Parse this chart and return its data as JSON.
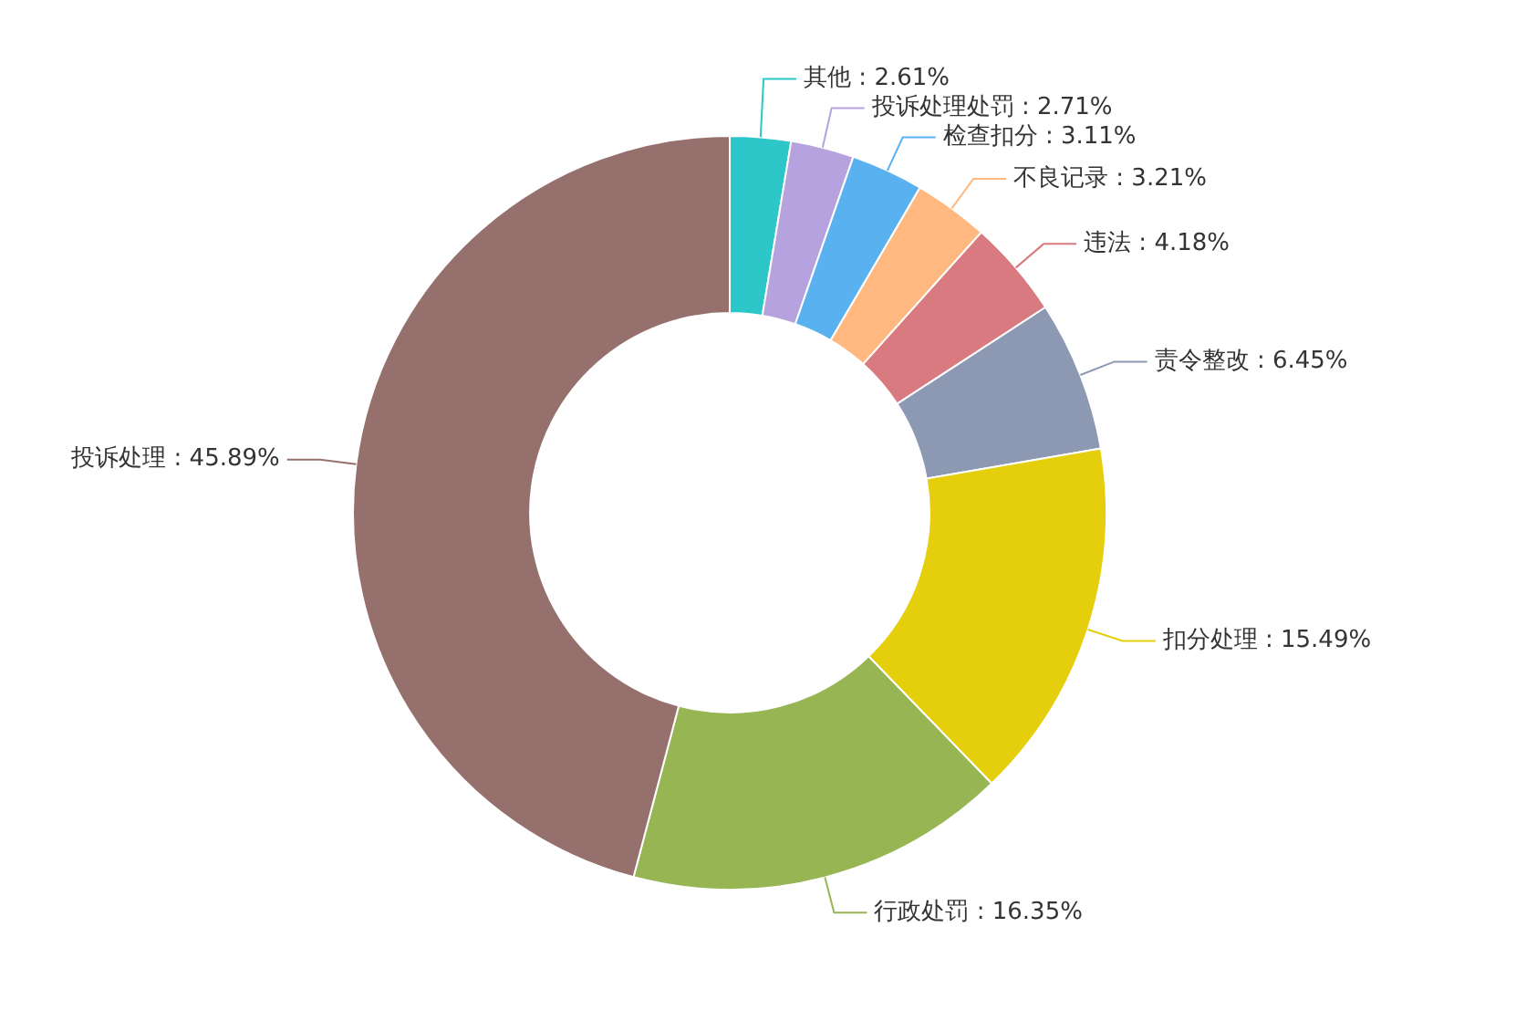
{
  "chart_data": {
    "type": "donut",
    "categories": [
      "其他",
      "投诉处理处罚",
      "检查扣分",
      "不良记录",
      "违法",
      "责令整改",
      "扣分处理",
      "行政处罚",
      "投诉处理"
    ],
    "values": [
      2.61,
      2.71,
      3.11,
      3.21,
      4.18,
      6.45,
      15.49,
      16.35,
      45.89
    ],
    "value_labels": [
      "2.61%",
      "2.71%",
      "3.11%",
      "3.21%",
      "4.18%",
      "6.45%",
      "15.49%",
      "16.35%",
      "45.89%"
    ],
    "colors": [
      "#2ec7c9",
      "#b6a2de",
      "#5ab1ef",
      "#ffb980",
      "#d87a80",
      "#8d98b3",
      "#e5cf0d",
      "#97b552",
      "#95706d"
    ]
  }
}
